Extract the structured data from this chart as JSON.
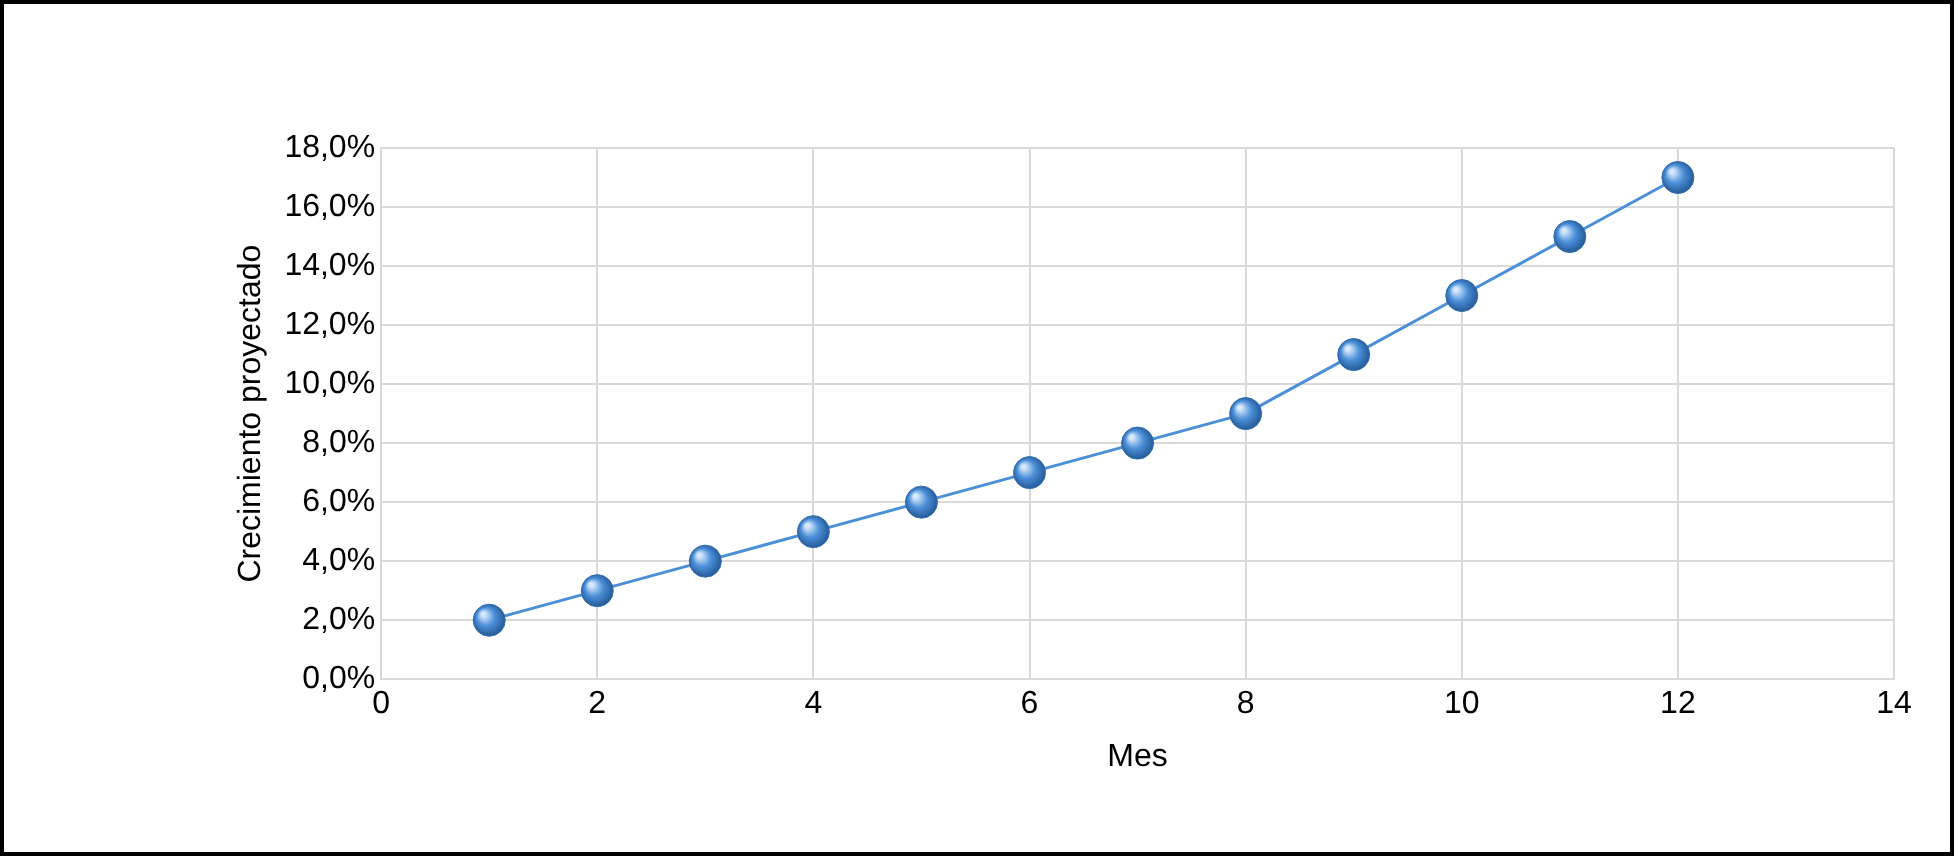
{
  "chart_data": {
    "type": "line",
    "xlabel": "Mes",
    "ylabel": "Crecimiento proyectado",
    "series": [
      {
        "color": "#4a8fd8",
        "x": [
          1,
          2,
          3,
          4,
          5,
          6,
          7,
          8,
          9,
          10,
          11,
          12
        ],
        "values": [
          2,
          3,
          4,
          5,
          6,
          7,
          8,
          9,
          11,
          13,
          15,
          17
        ]
      }
    ],
    "xlim": [
      0,
      14
    ],
    "xticks": [
      0,
      2,
      4,
      6,
      8,
      10,
      12,
      14
    ],
    "ylim": [
      0,
      18
    ],
    "yticks": [
      {
        "value": 0,
        "label": "0,0%"
      },
      {
        "value": 2,
        "label": "2,0%"
      },
      {
        "value": 4,
        "label": "4,0%"
      },
      {
        "value": 6,
        "label": "6,0%"
      },
      {
        "value": 8,
        "label": "8,0%"
      },
      {
        "value": 10,
        "label": "10,0%"
      },
      {
        "value": 12,
        "label": "12,0%"
      },
      {
        "value": 14,
        "label": "14,0%"
      },
      {
        "value": 16,
        "label": "16,0%"
      },
      {
        "value": 18,
        "label": "18,0%"
      }
    ],
    "grid": true,
    "legend": false,
    "marker": "circle",
    "line_style": "solid"
  }
}
